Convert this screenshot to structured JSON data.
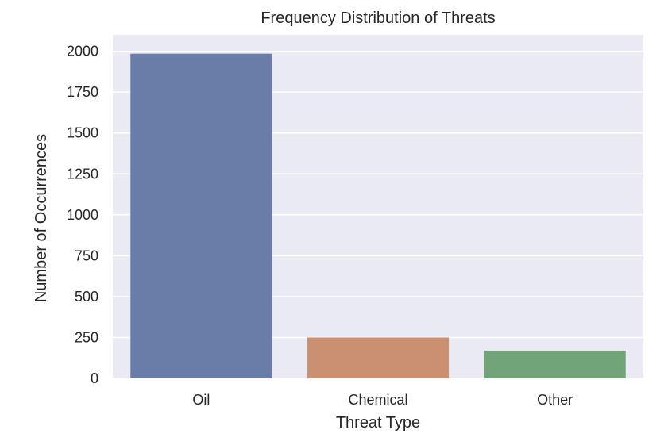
{
  "chart_data": {
    "type": "bar",
    "title": "Frequency Distribution of Threats",
    "xlabel": "Threat Type",
    "ylabel": "Number of Occurrences",
    "categories": [
      "Oil",
      "Chemical",
      "Other"
    ],
    "values": [
      1985,
      250,
      170
    ],
    "colors": [
      "#6a7da9",
      "#c99072",
      "#72a47a"
    ],
    "ylim": [
      0,
      2100
    ],
    "yticks": [
      0,
      250,
      500,
      750,
      1000,
      1250,
      1500,
      1750,
      2000
    ],
    "grid": true,
    "background": "#eaeaf2",
    "grid_color": "#ffffff"
  }
}
